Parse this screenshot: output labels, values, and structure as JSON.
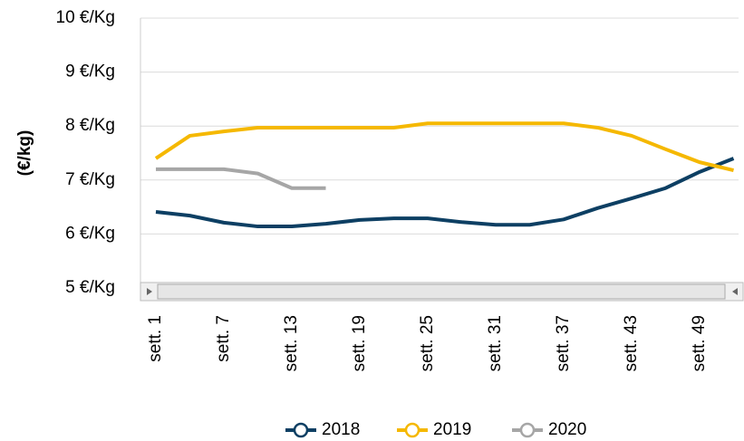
{
  "chart_data": {
    "type": "line",
    "y_label": "(€/kg)",
    "categories": [
      "sett. 1",
      null,
      "sett. 7",
      null,
      "sett. 13",
      null,
      "sett. 19",
      null,
      "sett. 25",
      null,
      "sett. 31",
      null,
      "sett. 37",
      null,
      "sett. 43",
      null,
      "sett. 49",
      null
    ],
    "series": [
      {
        "name": "2018",
        "color": "#0d3f63",
        "values": [
          6.41,
          6.34,
          6.21,
          6.14,
          6.14,
          6.19,
          6.26,
          6.29,
          6.29,
          6.22,
          6.17,
          6.17,
          6.27,
          6.48,
          6.66,
          6.85,
          7.15,
          7.4
        ]
      },
      {
        "name": "2019",
        "color": "#f5b800",
        "values": [
          7.4,
          7.82,
          7.9,
          7.97,
          7.97,
          7.97,
          7.97,
          7.97,
          8.05,
          8.05,
          8.05,
          8.05,
          8.05,
          7.97,
          7.82,
          7.57,
          7.33,
          7.18
        ]
      },
      {
        "name": "2020",
        "color": "#a6a6a6",
        "values": [
          7.2,
          7.2,
          7.2,
          7.12,
          6.85,
          6.85,
          null,
          null,
          null,
          null,
          null,
          null,
          null,
          null,
          null,
          null,
          null,
          null
        ]
      }
    ],
    "ylim": [
      5,
      10
    ],
    "yticks": [
      {
        "value": 5,
        "label": "5 €/Kg"
      },
      {
        "value": 6,
        "label": "6 €/Kg"
      },
      {
        "value": 7,
        "label": "7 €/Kg"
      },
      {
        "value": 8,
        "label": "8 €/Kg"
      },
      {
        "value": 9,
        "label": "9 €/Kg"
      },
      {
        "value": 10,
        "label": "10 €/Kg"
      }
    ],
    "grid": true,
    "legend": "bottom"
  }
}
